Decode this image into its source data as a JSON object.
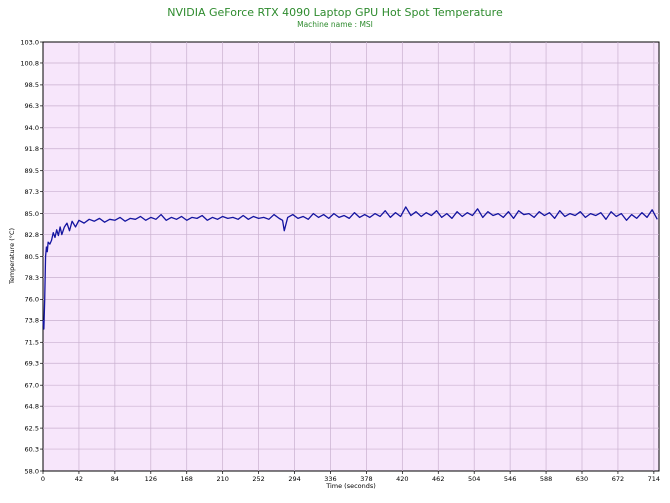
{
  "chart_data": {
    "type": "line",
    "title": "NVIDIA GeForce RTX 4090 Laptop GPU Hot Spot Temperature",
    "subtitle": "Machine name : MSI",
    "xlabel": "Time (seconds)",
    "ylabel": "Temperature (°C)",
    "xlim": [
      0,
      720
    ],
    "ylim": [
      58.0,
      103.0
    ],
    "xticks": [
      0,
      42,
      84,
      126,
      168,
      210,
      252,
      294,
      336,
      378,
      420,
      462,
      504,
      546,
      588,
      630,
      672,
      714
    ],
    "yticks": [
      "103.0",
      "100.8",
      "98.5",
      "96.3",
      "94.0",
      "91.8",
      "89.5",
      "87.3",
      "85.0",
      "82.8",
      "80.5",
      "78.3",
      "76.0",
      "73.8",
      "71.5",
      "69.3",
      "67.0",
      "64.8",
      "62.5",
      "60.3",
      "58.0"
    ],
    "grid": true,
    "colors": {
      "plot_bg": "#f7e6fb",
      "grid": "#c9b0cf",
      "line": "#1414a0",
      "title": "#2e8b2e"
    },
    "series": [
      {
        "values_x": [
          0,
          1,
          2,
          3,
          4,
          5,
          6,
          8,
          10,
          12,
          14,
          16,
          18,
          20,
          22,
          25,
          28,
          31,
          34,
          38,
          42,
          48,
          54,
          60,
          66,
          72,
          78,
          84,
          90,
          96,
          102,
          108,
          114,
          120,
          126,
          132,
          138,
          144,
          150,
          156,
          162,
          168,
          174,
          180,
          186,
          192,
          198,
          204,
          210,
          216,
          222,
          228,
          234,
          240,
          246,
          252,
          258,
          264,
          270,
          276,
          280,
          282,
          286,
          292,
          298,
          304,
          310,
          316,
          322,
          328,
          334,
          340,
          346,
          352,
          358,
          364,
          370,
          376,
          382,
          388,
          394,
          400,
          406,
          412,
          418,
          424,
          430,
          436,
          442,
          448,
          454,
          460,
          466,
          472,
          478,
          484,
          490,
          496,
          502,
          508,
          514,
          520,
          526,
          532,
          538,
          544,
          550,
          556,
          562,
          568,
          574,
          580,
          586,
          592,
          598,
          604,
          610,
          616,
          622,
          628,
          634,
          640,
          646,
          652,
          658,
          664,
          670,
          676,
          682,
          688,
          694,
          700,
          706,
          712,
          718
        ],
        "values_y": [
          73.8,
          72.9,
          76.0,
          80.5,
          81.5,
          81.0,
          82.0,
          81.8,
          82.2,
          83.0,
          82.5,
          83.3,
          82.7,
          83.6,
          82.8,
          83.6,
          84.0,
          83.2,
          84.2,
          83.6,
          84.3,
          84.0,
          84.4,
          84.2,
          84.5,
          84.1,
          84.4,
          84.3,
          84.6,
          84.2,
          84.5,
          84.4,
          84.7,
          84.3,
          84.6,
          84.4,
          84.9,
          84.3,
          84.6,
          84.4,
          84.7,
          84.3,
          84.6,
          84.5,
          84.8,
          84.3,
          84.6,
          84.4,
          84.7,
          84.5,
          84.6,
          84.4,
          84.8,
          84.4,
          84.7,
          84.5,
          84.6,
          84.4,
          84.9,
          84.5,
          84.3,
          83.2,
          84.6,
          84.9,
          84.5,
          84.7,
          84.4,
          85.0,
          84.6,
          84.9,
          84.5,
          85.0,
          84.6,
          84.8,
          84.5,
          85.1,
          84.6,
          84.9,
          84.6,
          85.0,
          84.7,
          85.3,
          84.6,
          85.1,
          84.7,
          85.7,
          84.8,
          85.2,
          84.7,
          85.1,
          84.8,
          85.3,
          84.6,
          85.0,
          84.5,
          85.2,
          84.7,
          85.1,
          84.8,
          85.5,
          84.6,
          85.2,
          84.8,
          85.0,
          84.6,
          85.2,
          84.5,
          85.3,
          84.9,
          85.0,
          84.6,
          85.2,
          84.8,
          85.1,
          84.5,
          85.3,
          84.7,
          85.0,
          84.8,
          85.2,
          84.6,
          85.0,
          84.8,
          85.1,
          84.4,
          85.2,
          84.7,
          85.0,
          84.3,
          84.9,
          84.5,
          85.1,
          84.6,
          85.4,
          84.4
        ]
      }
    ]
  }
}
